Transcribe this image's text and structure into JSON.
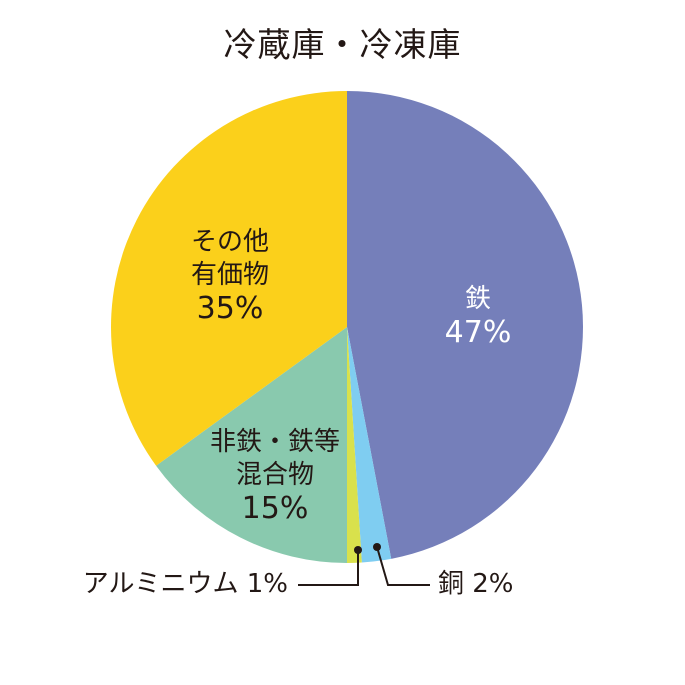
{
  "chart_data": {
    "type": "pie",
    "title": "冷蔵庫・冷凍庫",
    "start_angle": "12 o'clock, clockwise",
    "categories": [
      "鉄",
      "銅",
      "アルミニウム",
      "非鉄・鉄等混合物",
      "その他有価物"
    ],
    "values": [
      47,
      2,
      1,
      15,
      35
    ],
    "unit": "%",
    "colors": [
      "#757fba",
      "#7fcdf1",
      "#d9e14c",
      "#89c9ae",
      "#fbd01b"
    ],
    "labels": [
      {
        "lines": [
          "鉄"
        ],
        "value": "47%",
        "position": "inside",
        "text_color": "#ffffff"
      },
      {
        "lines": [
          "銅"
        ],
        "value": "2%",
        "position": "outside-leader"
      },
      {
        "lines": [
          "アルミニウム"
        ],
        "value": "1%",
        "position": "outside-leader"
      },
      {
        "lines": [
          "非鉄・鉄等",
          "混合物"
        ],
        "value": "15%",
        "position": "inside"
      },
      {
        "lines": [
          "その他",
          "有価物"
        ],
        "value": "35%",
        "position": "inside"
      }
    ]
  },
  "title": "冷蔵庫・冷凍庫",
  "labels": {
    "iron": {
      "name": "鉄",
      "pct": "47%"
    },
    "copper": {
      "text": "銅 2%"
    },
    "aluminium": {
      "text": "アルミニウム 1%"
    },
    "mixed": {
      "l1": "非鉄・鉄等",
      "l2": "混合物",
      "pct": "15%"
    },
    "other": {
      "l1": "その他",
      "l2": "有価物",
      "pct": "35%"
    }
  }
}
